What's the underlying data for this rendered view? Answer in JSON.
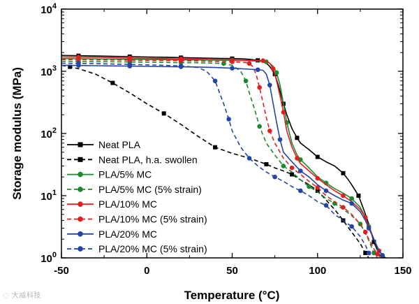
{
  "chart_data": {
    "type": "line",
    "xlabel": "Temperature (°C)",
    "ylabel": "Storage modulus (MPa)",
    "xlim": [
      -50,
      150
    ],
    "ylim": [
      1,
      10000
    ],
    "y_scale": "log",
    "x_ticks": [
      -50,
      0,
      50,
      100,
      150
    ],
    "y_ticks": [
      {
        "value": 1,
        "base": "10",
        "exp": "0"
      },
      {
        "value": 10,
        "base": "10",
        "exp": "1"
      },
      {
        "value": 100,
        "base": "10",
        "exp": "2"
      },
      {
        "value": 1000,
        "base": "10",
        "exp": "3"
      },
      {
        "value": 10000,
        "base": "10",
        "exp": "4"
      }
    ],
    "grid": false,
    "legend_position": "bottom-left",
    "series": [
      {
        "name": "Neat PLA",
        "color": "#000000",
        "dash": false,
        "marker": "square",
        "x": [
          -50,
          -40,
          -30,
          -20,
          -10,
          0,
          10,
          20,
          30,
          40,
          50,
          55,
          60,
          65,
          70,
          72,
          75,
          77,
          79,
          80,
          82,
          85,
          88,
          90,
          95,
          100,
          105,
          110,
          115,
          118,
          120,
          124,
          127,
          130,
          133,
          136,
          138
        ],
        "y": [
          1800,
          1780,
          1760,
          1740,
          1720,
          1700,
          1680,
          1660,
          1640,
          1620,
          1600,
          1590,
          1560,
          1500,
          1350,
          1200,
          900,
          600,
          380,
          300,
          200,
          120,
          85,
          70,
          55,
          42,
          35,
          30,
          23,
          18,
          15,
          10,
          6,
          3.5,
          1.8,
          1.15,
          1.0
        ]
      },
      {
        "name": "Neat PLA, h.a. swollen",
        "color": "#000000",
        "dash": true,
        "marker": "square",
        "x": [
          -50,
          -45,
          -40,
          -30,
          -20,
          -10,
          0,
          10,
          20,
          30,
          40,
          50,
          60,
          70,
          75,
          80,
          85,
          90,
          95,
          100,
          105,
          110,
          115,
          120,
          125,
          128,
          130
        ],
        "y": [
          1250,
          1180,
          1100,
          900,
          650,
          450,
          300,
          210,
          140,
          90,
          60,
          48,
          40,
          32,
          28,
          25,
          22,
          18,
          15,
          12,
          8.5,
          6,
          4,
          2.6,
          1.7,
          1.2,
          1.0
        ]
      },
      {
        "name": "PLA/5% MC",
        "color": "#1a8a2e",
        "dash": false,
        "marker": "circle",
        "x": [
          -50,
          -40,
          -30,
          -20,
          -10,
          0,
          10,
          20,
          30,
          40,
          50,
          60,
          65,
          70,
          72,
          74,
          76,
          78,
          80,
          82,
          85,
          88,
          90,
          95,
          100,
          105,
          110,
          115,
          120,
          125,
          128,
          130,
          133,
          136,
          138,
          140
        ],
        "y": [
          1600,
          1590,
          1580,
          1570,
          1560,
          1550,
          1540,
          1530,
          1520,
          1510,
          1500,
          1480,
          1460,
          1420,
          1350,
          1200,
          950,
          600,
          300,
          150,
          70,
          45,
          38,
          28,
          20,
          16,
          13,
          11,
          9,
          6.5,
          4.5,
          3.2,
          2,
          1.3,
          1.08,
          1.0
        ]
      },
      {
        "name": "PLA/5% MC (5% strain)",
        "color": "#1a8a2e",
        "dash": true,
        "marker": "circle",
        "x": [
          -50,
          -40,
          -30,
          -20,
          -10,
          0,
          10,
          20,
          30,
          40,
          45,
          50,
          55,
          58,
          60,
          63,
          66,
          70,
          75,
          80,
          85,
          90,
          95,
          100,
          105,
          110,
          115,
          120,
          125,
          128,
          130,
          133,
          135
        ],
        "y": [
          1450,
          1440,
          1430,
          1420,
          1410,
          1400,
          1390,
          1380,
          1370,
          1350,
          1330,
          1250,
          1000,
          700,
          450,
          250,
          130,
          70,
          45,
          30,
          24,
          18,
          14,
          11.5,
          9,
          7.5,
          6,
          4.8,
          3.5,
          2.5,
          1.9,
          1.2,
          1.0
        ]
      },
      {
        "name": "PLA/10% MC",
        "color": "#e02020",
        "dash": false,
        "marker": "circle",
        "x": [
          -50,
          -40,
          -30,
          -20,
          -10,
          0,
          10,
          20,
          30,
          40,
          50,
          60,
          65,
          68,
          70,
          72,
          74,
          76,
          78,
          80,
          82,
          85,
          88,
          90,
          95,
          100,
          105,
          110,
          115,
          120,
          125,
          128,
          130,
          133,
          136,
          138,
          140
        ],
        "y": [
          1700,
          1690,
          1680,
          1660,
          1640,
          1620,
          1600,
          1580,
          1560,
          1540,
          1520,
          1500,
          1490,
          1480,
          1450,
          1350,
          1100,
          700,
          400,
          220,
          110,
          60,
          40,
          33,
          25,
          19,
          15,
          12,
          10,
          8,
          6,
          4.5,
          3.2,
          2,
          1.3,
          1.1,
          1.0
        ]
      },
      {
        "name": "PLA/10% MC (5% strain)",
        "color": "#e02020",
        "dash": true,
        "marker": "circle",
        "x": [
          -50,
          -40,
          -30,
          -20,
          -10,
          0,
          10,
          20,
          30,
          40,
          50,
          55,
          58,
          60,
          62,
          64,
          66,
          68,
          70,
          72,
          75,
          80,
          85,
          90,
          95,
          100,
          105,
          110,
          115,
          120,
          125,
          128,
          130,
          133,
          135,
          137
        ],
        "y": [
          1550,
          1540,
          1530,
          1520,
          1510,
          1500,
          1490,
          1480,
          1460,
          1440,
          1420,
          1400,
          1380,
          1330,
          1200,
          900,
          550,
          320,
          180,
          110,
          70,
          40,
          28,
          22,
          17,
          13.5,
          10,
          8,
          6.5,
          5,
          3.5,
          2.6,
          2,
          1.4,
          1.15,
          1.0
        ]
      },
      {
        "name": "PLA/20% MC",
        "color": "#2445a8",
        "dash": false,
        "marker": "circle",
        "x": [
          -50,
          -40,
          -30,
          -20,
          -10,
          0,
          10,
          20,
          30,
          40,
          50,
          55,
          60,
          65,
          68,
          70,
          72,
          74,
          76,
          78,
          80,
          85,
          90,
          95,
          100,
          105,
          110,
          115,
          120,
          125,
          128,
          130,
          133,
          136,
          138,
          140
        ],
        "y": [
          1250,
          1240,
          1230,
          1220,
          1210,
          1200,
          1190,
          1180,
          1170,
          1150,
          1120,
          1100,
          1080,
          1060,
          1040,
          900,
          600,
          300,
          150,
          80,
          50,
          35,
          25,
          20,
          15,
          12,
          10,
          8.5,
          7.5,
          5.5,
          4,
          3,
          2,
          1.3,
          1.1,
          1.0
        ]
      },
      {
        "name": "PLA/20% MC (5% strain)",
        "color": "#2445a8",
        "dash": true,
        "marker": "circle",
        "x": [
          -50,
          -40,
          -30,
          -20,
          -10,
          0,
          10,
          20,
          30,
          35,
          40,
          42,
          45,
          48,
          50,
          55,
          60,
          65,
          70,
          75,
          80,
          85,
          90,
          95,
          100,
          105,
          110,
          115,
          120,
          125,
          128,
          130,
          132
        ],
        "y": [
          1350,
          1340,
          1330,
          1310,
          1290,
          1270,
          1250,
          1220,
          1150,
          1000,
          700,
          500,
          300,
          170,
          110,
          60,
          40,
          30,
          24,
          20,
          17,
          14,
          12,
          10,
          8,
          7,
          5,
          4,
          3.2,
          2.2,
          1.6,
          1.2,
          1.0
        ]
      }
    ]
  }
}
